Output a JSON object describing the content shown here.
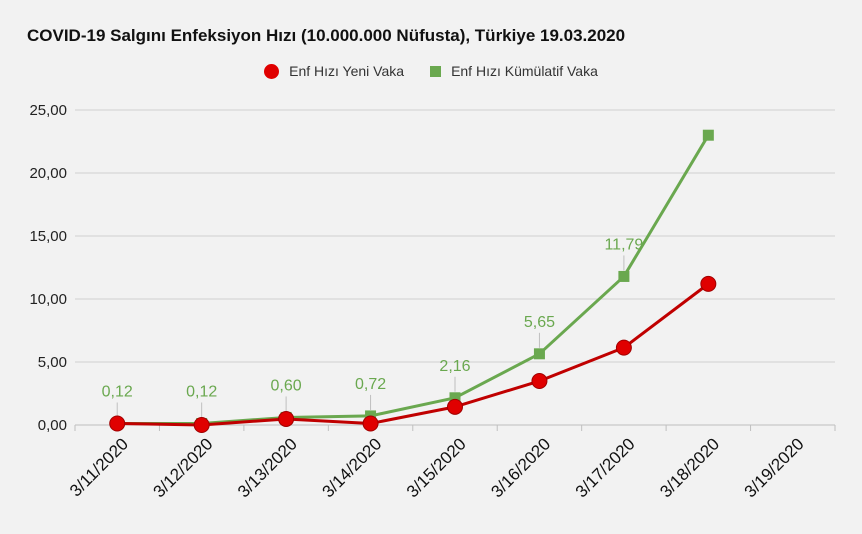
{
  "chart_data": {
    "type": "line",
    "title": "COVID-19 Salgını Enfeksiyon Hızı (10.000.000 Nüfusta), Türkiye 19.03.2020",
    "xlabel": "",
    "ylabel": "",
    "categories": [
      "3/11/2020",
      "3/12/2020",
      "3/13/2020",
      "3/14/2020",
      "3/15/2020",
      "3/16/2020",
      "3/17/2020",
      "3/18/2020",
      "3/19/2020"
    ],
    "y_ticks": [
      "0,00",
      "5,00",
      "10,00",
      "15,00",
      "20,00",
      "25,00"
    ],
    "ylim": [
      0,
      25
    ],
    "grid": true,
    "legend_position": "top-center",
    "series": [
      {
        "name": "Enf Hızı Yeni Vaka",
        "color": "#c00000",
        "marker": "circle",
        "values": [
          0.12,
          0.0,
          0.48,
          0.12,
          1.44,
          3.49,
          6.14,
          11.2,
          null
        ],
        "labels": []
      },
      {
        "name": "Enf Hızı Kümülatif Vaka",
        "color": "#6aa84f",
        "marker": "square",
        "values": [
          0.12,
          0.12,
          0.6,
          0.72,
          2.16,
          5.65,
          11.79,
          23.0,
          null
        ],
        "labels": [
          "0,12",
          "0,12",
          "0,60",
          "0,72",
          "2,16",
          "5,65",
          "11,79",
          null,
          null
        ]
      }
    ]
  }
}
